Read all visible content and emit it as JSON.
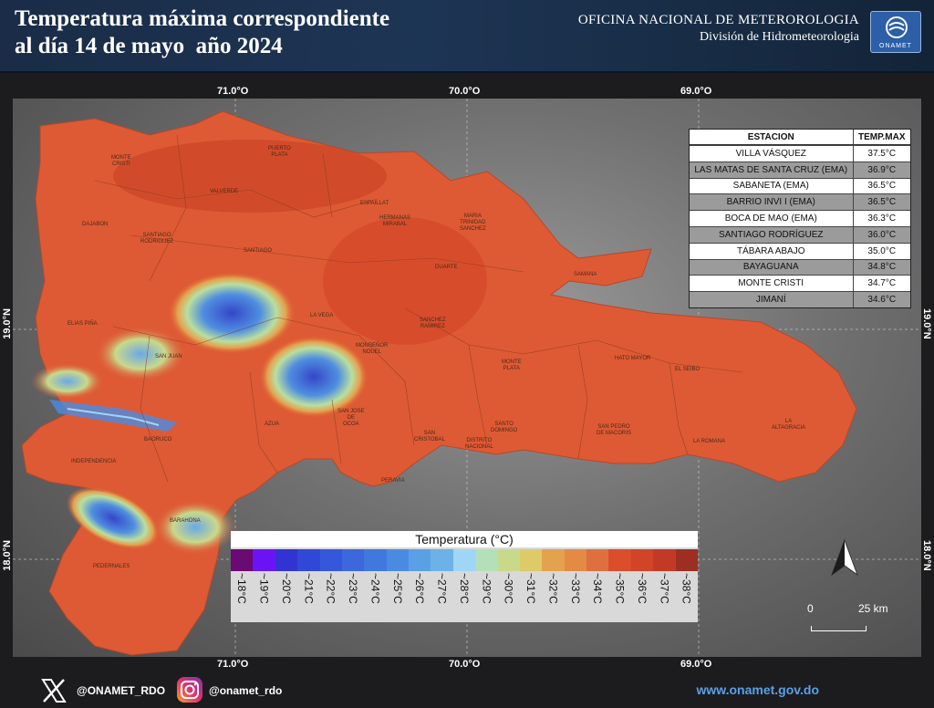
{
  "header": {
    "title": "Temperatura máxima correspondiente\nal día 14 de mayo  año 2024",
    "org_name": "OFICINA NACIONAL DE METEROROLOGIA",
    "org_division": "División de Hidrometeorologia",
    "logo_text": "ONAMET",
    "logo_icon": "onamet-logo"
  },
  "map": {
    "coords_top": [
      "71.0°O",
      "70.0°O",
      "69.0°O"
    ],
    "coords_bottom": [
      "71.0°O",
      "70.0°O",
      "69.0°O"
    ],
    "coords_left": [
      "19.0°N",
      "18.0°N"
    ],
    "coords_right": [
      "19.0°N",
      "18.0°N"
    ],
    "provinces": [
      "MONTE\nCRISTI",
      "PUERTO\nPLATA",
      "VALVERDE",
      "DAJABON",
      "SANTIAGO\nRODRIGUEZ",
      "SANTIAGO",
      "ESPAILLAT",
      "HERMANAS\nMIRABAL",
      "MARIA\nTRINIDAD\nSANCHEZ",
      "DUARTE",
      "SAMANA",
      "LA VEGA",
      "SANCHEZ\nRAMIREZ",
      "ELIAS PIÑA",
      "SAN JUAN",
      "MONSEÑOR\nNOUEL",
      "MONTE\nPLATA",
      "HATO MAYOR",
      "EL SEIBO",
      "AZUA",
      "SAN JOSE\nDE\nOCOA",
      "SANTO\nDOMINGO",
      "SAN\nCRISTOBAL",
      "DISTRITO\nNACIONAL",
      "SAN PEDRO\nDE MACORIS",
      "LA ROMANA",
      "LA\nALTAGRACIA",
      "BAORUCO",
      "INDEPENDENCIA",
      "PERAVIA",
      "BARAHONA",
      "PEDERNALES"
    ],
    "north_icon": "north-arrow-icon",
    "scale_zero": "0",
    "scale_km": "25 km"
  },
  "stations": {
    "header_name": "ESTACION",
    "header_temp": "TEMP.MAX",
    "rows": [
      {
        "name": "VILLA VÁSQUEZ",
        "temp": "37.5°C"
      },
      {
        "name": "LAS MATAS DE SANTA CRUZ (EMA)",
        "temp": "36.9°C"
      },
      {
        "name": "SABANETA (EMA)",
        "temp": "36.5°C"
      },
      {
        "name": "BARRIO INVI I (EMA)",
        "temp": "36.5°C"
      },
      {
        "name": "BOCA DE MAO (EMA)",
        "temp": "36.3°C"
      },
      {
        "name": "SANTIAGO RODRÍGUEZ",
        "temp": "36.0°C"
      },
      {
        "name": "TÁBARA ABAJO",
        "temp": "35.0°C"
      },
      {
        "name": "BAYAGUANA",
        "temp": "34.8°C"
      },
      {
        "name": "MONTE CRISTI",
        "temp": "34.7°C"
      },
      {
        "name": "JIMANÍ",
        "temp": "34.6°C"
      }
    ]
  },
  "legend": {
    "title": "Temperatura (°C)",
    "classes": [
      {
        "label": "~18°C",
        "color": "#6a0a73"
      },
      {
        "label": "~19°C",
        "color": "#6a14f5"
      },
      {
        "label": "~20°C",
        "color": "#3134d2"
      },
      {
        "label": "~21°C",
        "color": "#2f48d8"
      },
      {
        "label": "~22°C",
        "color": "#3558da"
      },
      {
        "label": "~23°C",
        "color": "#3d68dc"
      },
      {
        "label": "~24°C",
        "color": "#4178de"
      },
      {
        "label": "~25°C",
        "color": "#4a8be2"
      },
      {
        "label": "~26°C",
        "color": "#5aa0e5"
      },
      {
        "label": "~27°C",
        "color": "#6cb2e8"
      },
      {
        "label": "~28°C",
        "color": "#9fd6f5"
      },
      {
        "label": "~29°C",
        "color": "#b3e0b8"
      },
      {
        "label": "~30°C",
        "color": "#c9d98a"
      },
      {
        "label": "~31°C",
        "color": "#ddca6a"
      },
      {
        "label": "~32°C",
        "color": "#e4a24e"
      },
      {
        "label": "~33°C",
        "color": "#e38a45"
      },
      {
        "label": "~34°C",
        "color": "#de7040"
      },
      {
        "label": "~35°C",
        "color": "#dc4d2b"
      },
      {
        "label": "~36°C",
        "color": "#d24428"
      },
      {
        "label": "~37°C",
        "color": "#c23a26"
      },
      {
        "label": "~38°C",
        "color": "#9c2f22"
      }
    ]
  },
  "footer": {
    "x_icon": "x-logo-icon",
    "x_handle": "@ONAMET_RDO",
    "ig_icon": "instagram-logo-icon",
    "ig_handle": "@onamet_rdo",
    "website": "www.onamet.gov.do"
  },
  "colors": {
    "header_bg": "#1d3554",
    "land_hot": "#de5a34",
    "mountain_cool": "#3b5fd6",
    "website": "#5aa0e8"
  }
}
